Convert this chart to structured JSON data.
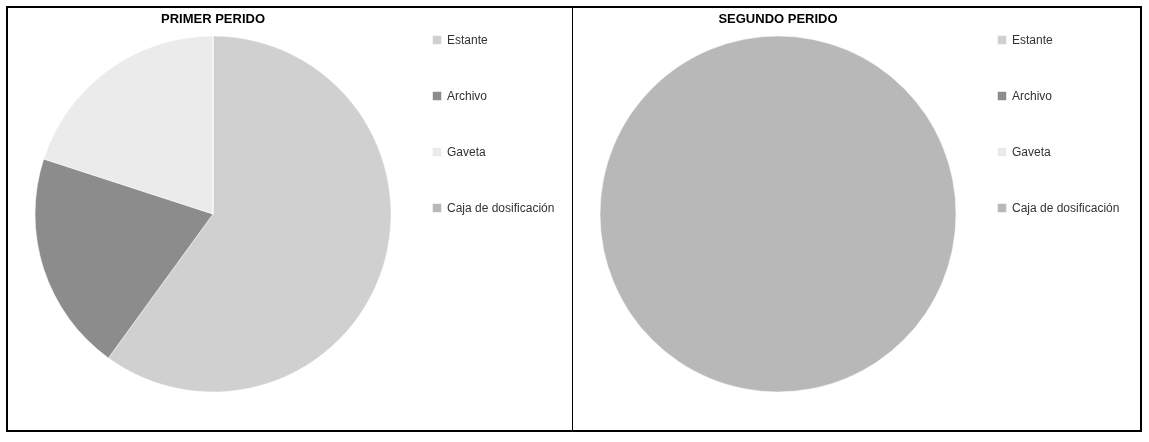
{
  "chart_data": [
    {
      "type": "pie",
      "title": "PRIMER PERIDO",
      "categories": [
        "Estante",
        "Archivo",
        "Gaveta",
        "Caja de dosificación"
      ],
      "values": [
        60,
        20,
        20,
        0
      ],
      "colors": [
        "#d0d0d0",
        "#8c8c8c",
        "#ebebeb",
        "#b8b8b8"
      ],
      "legend": "right"
    },
    {
      "type": "pie",
      "title": "SEGUNDO PERIDO",
      "categories": [
        "Estante",
        "Archivo",
        "Gaveta",
        "Caja de dosificación"
      ],
      "values": [
        0,
        0,
        0,
        100
      ],
      "colors": [
        "#d0d0d0",
        "#8c8c8c",
        "#ebebeb",
        "#b8b8b8"
      ],
      "legend": "right"
    }
  ]
}
